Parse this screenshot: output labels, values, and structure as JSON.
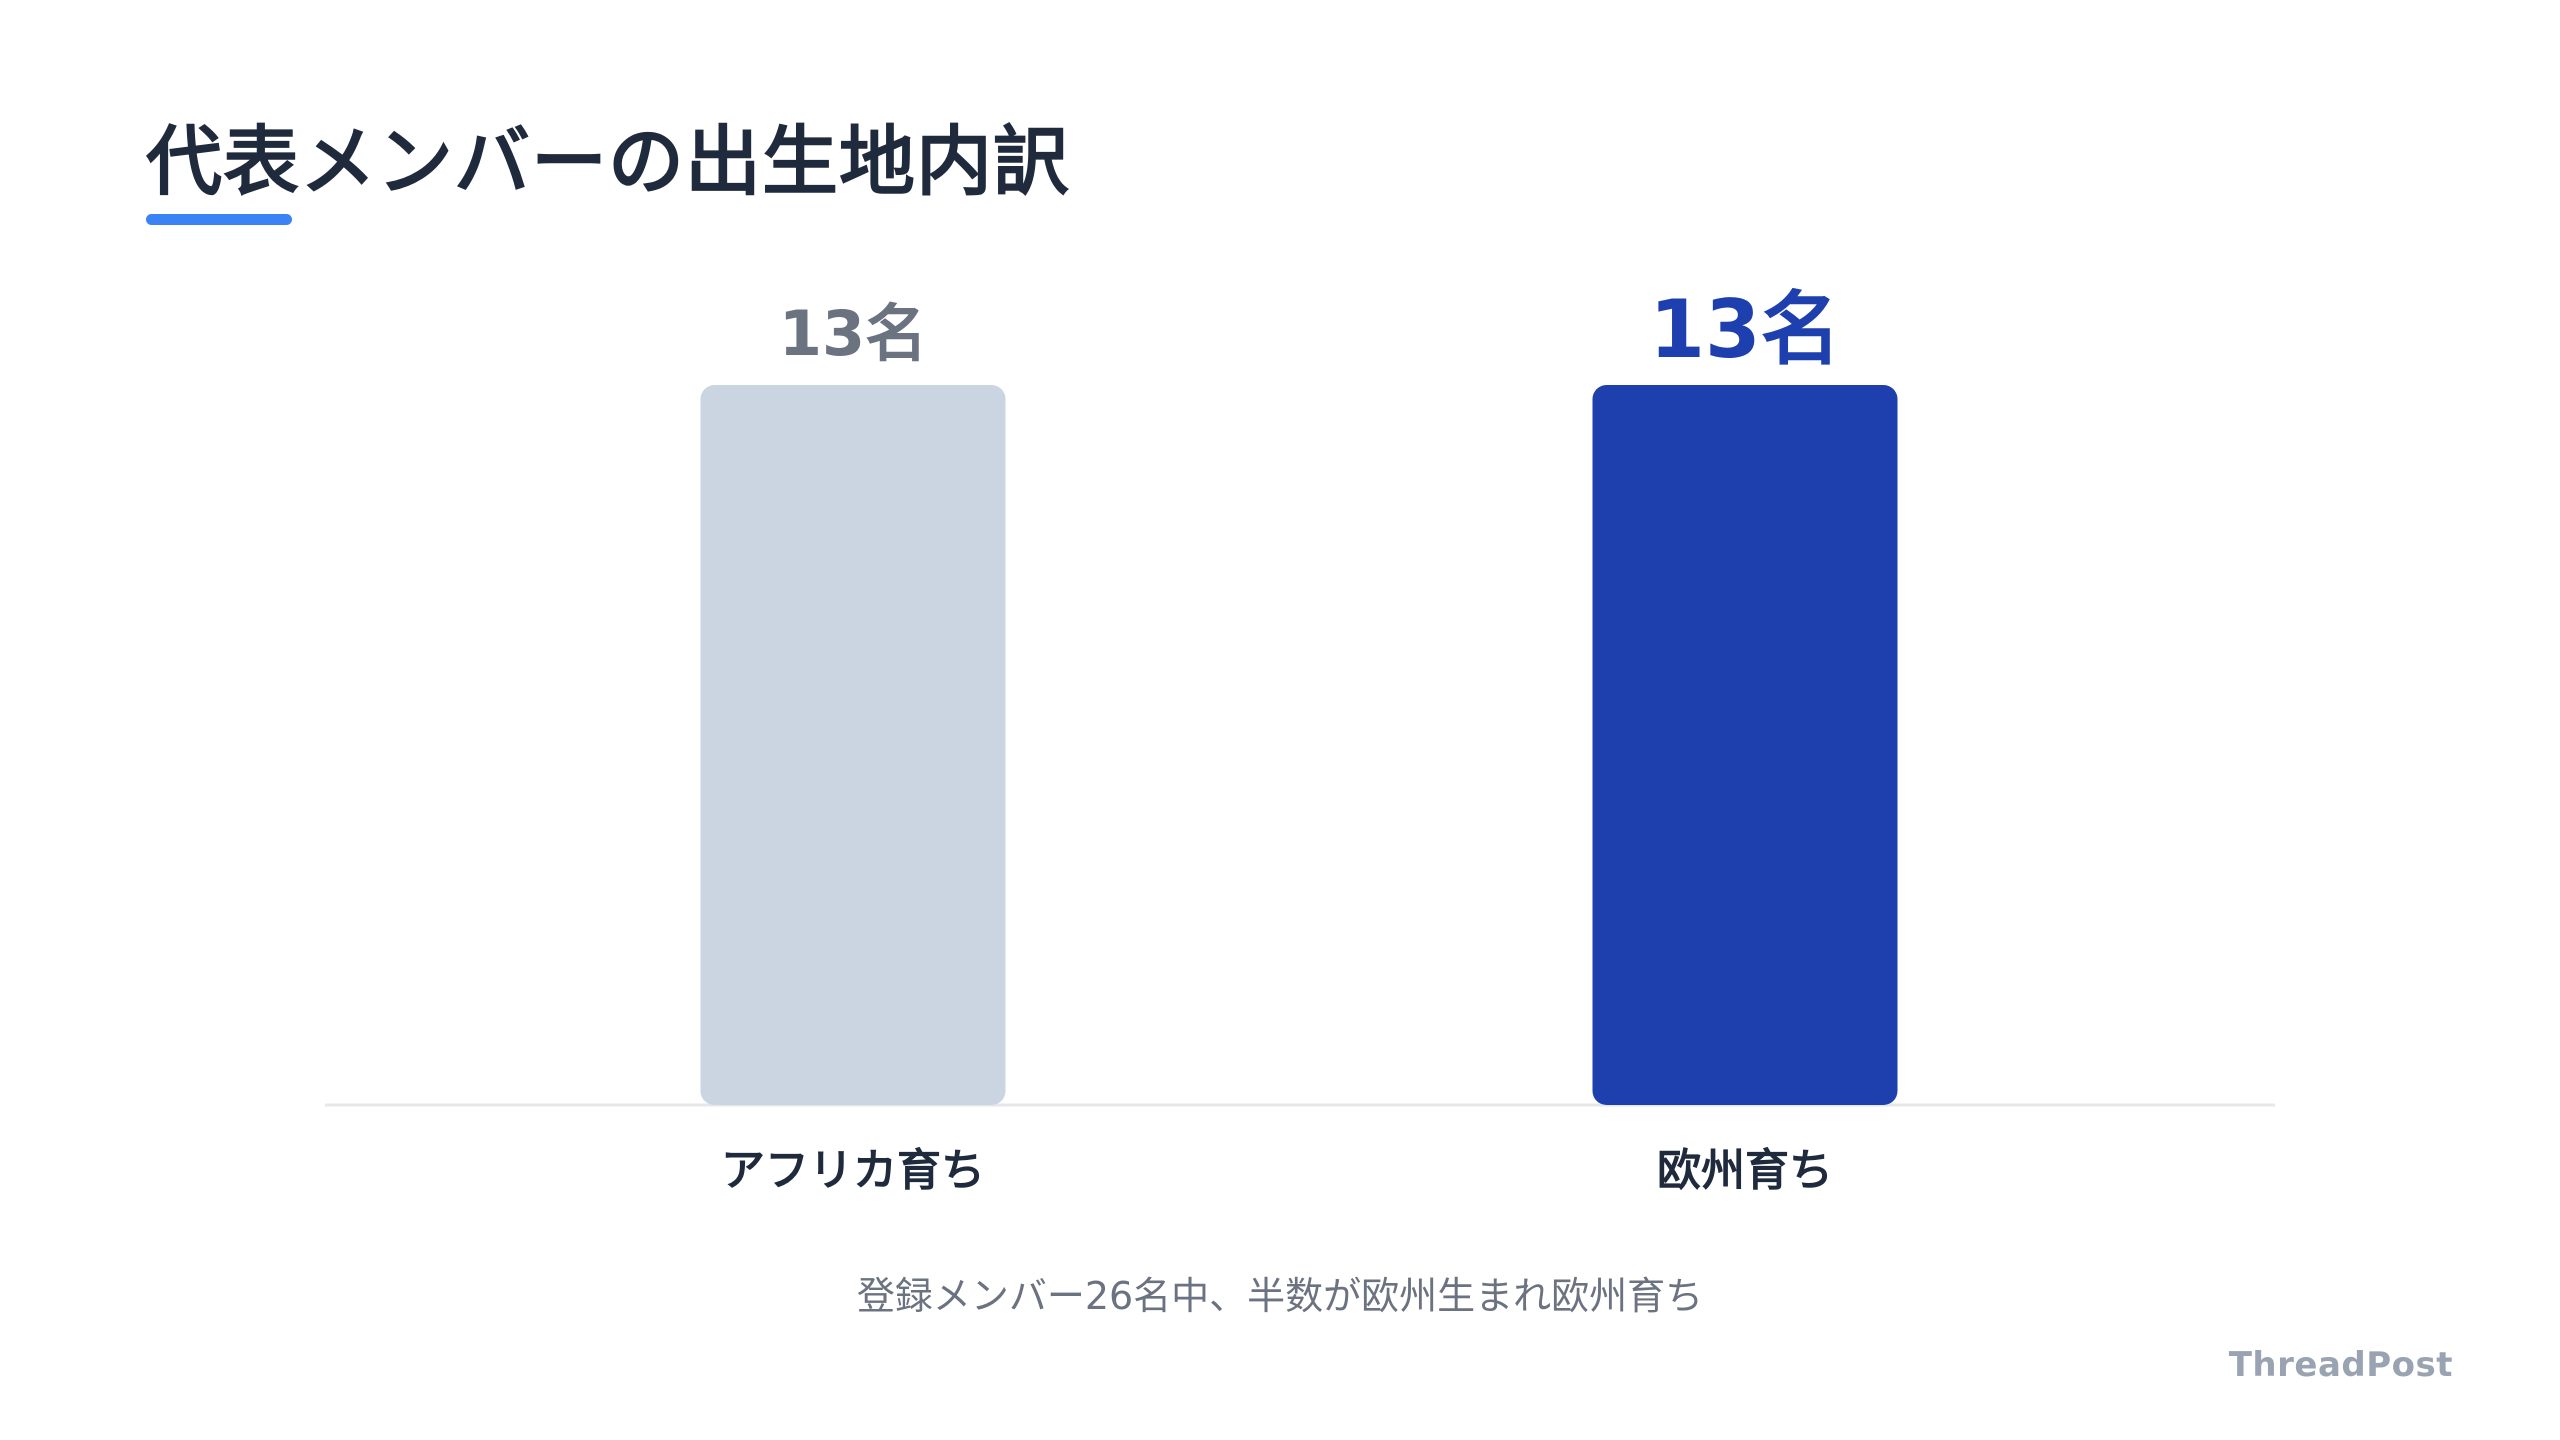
{
  "title": "代表メンバーの出生地内訳",
  "footnote": "登録メンバー26名中、半数が欧州生まれ欧州育ち",
  "brand": "ThreadPost",
  "colors": {
    "accent": "#3b82f6",
    "bar_muted": "#cbd5e1",
    "bar_highlight": "#1e3fae",
    "label_muted": "#6b7280",
    "text_dark": "#1f2a3d",
    "baseline": "#e5e7eb"
  },
  "chart_data": {
    "type": "bar",
    "title": "代表メンバーの出生地内訳",
    "categories": [
      "アフリカ育ち",
      "欧州育ち"
    ],
    "values": [
      13,
      13
    ],
    "value_labels": [
      "13名",
      "13名"
    ],
    "highlight_index": 1,
    "ylim": [
      0,
      13
    ],
    "grid": false,
    "xlabel": "",
    "ylabel": ""
  }
}
